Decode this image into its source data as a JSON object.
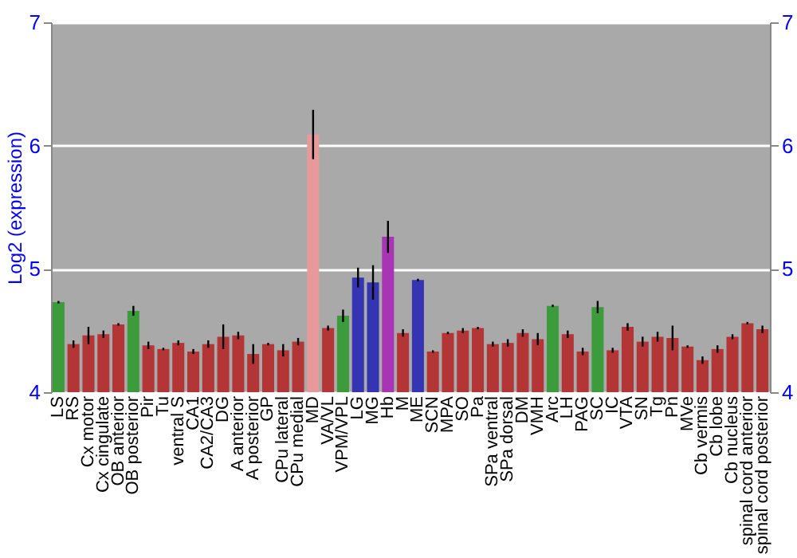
{
  "chart_data": {
    "type": "bar",
    "ylabel": "Log2 (expression)",
    "categories": [
      "LS",
      "RS",
      "Cx motor",
      "Cx cingulate",
      "OB anterior",
      "OB posterior",
      "Pir",
      "Tu",
      "ventral S",
      "CA1",
      "CA2/CA3",
      "DG",
      "A anterior",
      "A posterior",
      "GP",
      "CPu lateral",
      "CPu medial",
      "MD",
      "VA/VL",
      "VPM/VPL",
      "LG",
      "MG",
      "Hb",
      "M",
      "ME",
      "SCN",
      "MPA",
      "SO",
      "Pa",
      "SPa ventral",
      "SPa dorsal",
      "DM",
      "VMH",
      "Arc",
      "LH",
      "PAG",
      "SC",
      "IC",
      "VTA",
      "SN",
      "Tg",
      "Pn",
      "MVe",
      "Cb vermis",
      "Cb lobe",
      "Cb nucleus",
      "spinal cord anterior",
      "spinal cord posterior"
    ],
    "values": [
      4.73,
      4.39,
      4.46,
      4.47,
      4.55,
      4.66,
      4.38,
      4.35,
      4.4,
      4.33,
      4.39,
      4.45,
      4.46,
      4.31,
      4.39,
      4.34,
      4.41,
      6.09,
      4.52,
      4.62,
      4.93,
      4.89,
      5.26,
      4.48,
      4.91,
      4.33,
      4.48,
      4.5,
      4.52,
      4.39,
      4.4,
      4.48,
      4.43,
      4.7,
      4.47,
      4.33,
      4.69,
      4.34,
      4.53,
      4.41,
      4.45,
      4.44,
      4.37,
      4.26,
      4.35,
      4.45,
      4.56,
      4.51
    ],
    "errors": [
      0.01,
      0.03,
      0.07,
      0.03,
      0.01,
      0.04,
      0.03,
      0.01,
      0.02,
      0.02,
      0.03,
      0.1,
      0.03,
      0.08,
      0.01,
      0.05,
      0.03,
      0.2,
      0.02,
      0.05,
      0.08,
      0.14,
      0.13,
      0.03,
      0.01,
      0.01,
      0.01,
      0.02,
      0.01,
      0.02,
      0.03,
      0.03,
      0.05,
      0.01,
      0.03,
      0.03,
      0.05,
      0.02,
      0.03,
      0.04,
      0.04,
      0.1,
      0.01,
      0.03,
      0.03,
      0.02,
      0.01,
      0.03
    ],
    "colors": [
      "#3c9c3c",
      "#b33535",
      "#b33535",
      "#b33535",
      "#b33535",
      "#3c9c3c",
      "#b33535",
      "#b33535",
      "#b33535",
      "#b33535",
      "#b33535",
      "#b33535",
      "#b33535",
      "#b33535",
      "#b33535",
      "#b33535",
      "#b33535",
      "#e89a9a",
      "#b33535",
      "#3c9c3c",
      "#3535b3",
      "#3535b3",
      "#a835b3",
      "#b33535",
      "#3535b3",
      "#b33535",
      "#b33535",
      "#b33535",
      "#b33535",
      "#b33535",
      "#b33535",
      "#b33535",
      "#b33535",
      "#3c9c3c",
      "#b33535",
      "#b33535",
      "#3c9c3c",
      "#b33535",
      "#b33535",
      "#b33535",
      "#b33535",
      "#b33535",
      "#b33535",
      "#b33535",
      "#b33535",
      "#b33535",
      "#b33535",
      "#b33535"
    ],
    "ylim": [
      4,
      7
    ],
    "yticks": [
      4,
      5,
      6,
      7
    ],
    "y2lim": [
      4,
      7
    ],
    "y2ticks": [
      4,
      5,
      6,
      7
    ],
    "grid": "y"
  }
}
